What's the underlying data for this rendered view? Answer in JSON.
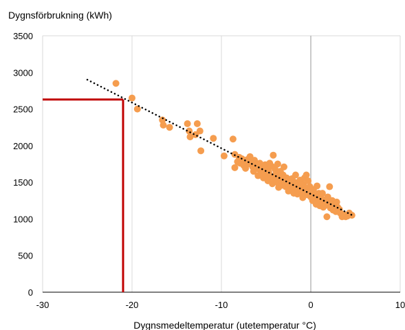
{
  "chart_data": {
    "type": "scatter",
    "title": "",
    "ylabel": "Dygnsförbrukning (kWh)",
    "xlabel": "Dygnsmedeltemperatur (utetemperatur °C)",
    "xlim": [
      -30,
      10
    ],
    "ylim": [
      0,
      3500
    ],
    "x_ticks": [
      -30,
      -20,
      -10,
      0,
      10
    ],
    "y_ticks": [
      0,
      500,
      1000,
      1500,
      2000,
      2500,
      3000,
      3500
    ],
    "grid": "vertical",
    "colors": {
      "points": "#f59d4f",
      "trendline": "#000000",
      "reference": "#c00000",
      "zero_line": "#a6a6a6",
      "grid": "#d9d9d9"
    },
    "points": [
      [
        -21.8,
        2850
      ],
      [
        -20.0,
        2650
      ],
      [
        -19.4,
        2500
      ],
      [
        -16.6,
        2350
      ],
      [
        -16.5,
        2280
      ],
      [
        -15.8,
        2250
      ],
      [
        -13.8,
        2300
      ],
      [
        -13.6,
        2200
      ],
      [
        -13.5,
        2120
      ],
      [
        -12.9,
        2150
      ],
      [
        -12.7,
        2300
      ],
      [
        -12.4,
        2200
      ],
      [
        -12.3,
        1930
      ],
      [
        -10.9,
        2100
      ],
      [
        -9.7,
        1860
      ],
      [
        -8.7,
        2090
      ],
      [
        -8.5,
        1880
      ],
      [
        -8.5,
        1700
      ],
      [
        -8.2,
        1780
      ],
      [
        -8.0,
        1840
      ],
      [
        -7.9,
        1760
      ],
      [
        -7.7,
        1820
      ],
      [
        -7.5,
        1730
      ],
      [
        -7.4,
        1790
      ],
      [
        -7.3,
        1690
      ],
      [
        -7.1,
        1810
      ],
      [
        -7.0,
        1750
      ],
      [
        -6.8,
        1850
      ],
      [
        -6.6,
        1770
      ],
      [
        -6.5,
        1710
      ],
      [
        -6.4,
        1650
      ],
      [
        -6.3,
        1800
      ],
      [
        -6.1,
        1730
      ],
      [
        -5.9,
        1590
      ],
      [
        -5.8,
        1680
      ],
      [
        -5.7,
        1760
      ],
      [
        -5.6,
        1620
      ],
      [
        -5.4,
        1700
      ],
      [
        -5.3,
        1560
      ],
      [
        -5.2,
        1650
      ],
      [
        -5.1,
        1740
      ],
      [
        -5.0,
        1600
      ],
      [
        -4.9,
        1690
      ],
      [
        -4.8,
        1520
      ],
      [
        -4.7,
        1640
      ],
      [
        -4.6,
        1760
      ],
      [
        -4.5,
        1580
      ],
      [
        -4.4,
        1720
      ],
      [
        -4.3,
        1480
      ],
      [
        -4.2,
        1870
      ],
      [
        -4.1,
        1550
      ],
      [
        -4.0,
        1680
      ],
      [
        -3.9,
        1620
      ],
      [
        -3.8,
        1500
      ],
      [
        -3.7,
        1750
      ],
      [
        -3.6,
        1430
      ],
      [
        -3.5,
        1570
      ],
      [
        -3.4,
        1650
      ],
      [
        -3.3,
        1530
      ],
      [
        -3.2,
        1460
      ],
      [
        -3.1,
        1600
      ],
      [
        -3.0,
        1710
      ],
      [
        -2.9,
        1500
      ],
      [
        -2.8,
        1440
      ],
      [
        -2.7,
        1560
      ],
      [
        -2.6,
        1480
      ],
      [
        -2.5,
        1380
      ],
      [
        -2.4,
        1520
      ],
      [
        -2.2,
        1420
      ],
      [
        -2.1,
        1550
      ],
      [
        -2.0,
        1470
      ],
      [
        -1.9,
        1350
      ],
      [
        -1.8,
        1500
      ],
      [
        -1.7,
        1600
      ],
      [
        -1.6,
        1420
      ],
      [
        -1.5,
        1340
      ],
      [
        -1.4,
        1460
      ],
      [
        -1.3,
        1380
      ],
      [
        -1.2,
        1530
      ],
      [
        -1.1,
        1440
      ],
      [
        -1.0,
        1360
      ],
      [
        -0.9,
        1290
      ],
      [
        -0.8,
        1470
      ],
      [
        -0.7,
        1560
      ],
      [
        -0.6,
        1400
      ],
      [
        -0.5,
        1600
      ],
      [
        -0.4,
        1330
      ],
      [
        -0.3,
        1520
      ],
      [
        -0.2,
        1380
      ],
      [
        -0.1,
        1440
      ],
      [
        0.0,
        1300
      ],
      [
        0.1,
        1360
      ],
      [
        0.2,
        1250
      ],
      [
        0.3,
        1400
      ],
      [
        0.4,
        1320
      ],
      [
        0.6,
        1200
      ],
      [
        0.7,
        1450
      ],
      [
        0.8,
        1280
      ],
      [
        0.9,
        1350
      ],
      [
        1.0,
        1180
      ],
      [
        1.1,
        1300
      ],
      [
        1.2,
        1230
      ],
      [
        1.3,
        1350
      ],
      [
        1.4,
        1160
      ],
      [
        1.5,
        1260
      ],
      [
        1.7,
        1190
      ],
      [
        1.8,
        1030
      ],
      [
        1.9,
        1300
      ],
      [
        2.0,
        1220
      ],
      [
        2.1,
        1440
      ],
      [
        2.2,
        1150
      ],
      [
        2.4,
        1250
      ],
      [
        2.5,
        1120
      ],
      [
        2.6,
        1190
      ],
      [
        2.8,
        1100
      ],
      [
        2.9,
        1230
      ],
      [
        3.0,
        1160
      ],
      [
        3.2,
        1130
      ],
      [
        3.3,
        1080
      ],
      [
        3.5,
        1030
      ],
      [
        3.7,
        1060
      ],
      [
        3.9,
        1030
      ],
      [
        4.1,
        1040
      ],
      [
        4.3,
        1080
      ],
      [
        4.6,
        1050
      ]
    ],
    "trendline": {
      "style": "dotted",
      "from": [
        -25,
        2900
      ],
      "to": [
        4.8,
        1040
      ]
    },
    "reference_lines": [
      {
        "orientation": "horizontal",
        "y": 2630,
        "x_from": -30,
        "x_to": -21
      },
      {
        "orientation": "vertical",
        "x": -21,
        "y_from": 0,
        "y_to": 2630
      }
    ]
  }
}
